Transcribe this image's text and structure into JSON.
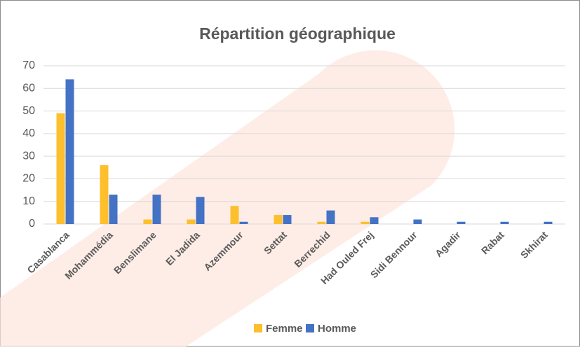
{
  "chart_data": {
    "type": "bar",
    "title": "Répartition géographique",
    "categories": [
      "Casablanca",
      "Mohammédia",
      "Benslimane",
      "El Jadida",
      "Azemmour",
      "Settat",
      "Berrechid",
      "Had Ouled Frej",
      "Sidi Bennour",
      "Agadir",
      "Rabat",
      "Skhirat"
    ],
    "series": [
      {
        "name": "Femme",
        "color": "#fdbf2d",
        "values": [
          49,
          26,
          2,
          2,
          8,
          4,
          1,
          1,
          0,
          0,
          0,
          0
        ]
      },
      {
        "name": "Homme",
        "color": "#4472c4",
        "values": [
          64,
          13,
          13,
          12,
          1,
          4,
          6,
          3,
          2,
          1,
          1,
          1
        ]
      }
    ],
    "ylim": [
      0,
      70
    ],
    "yticks": [
      0,
      10,
      20,
      30,
      40,
      50,
      60,
      70
    ],
    "grid": true,
    "legend": "bottom"
  }
}
